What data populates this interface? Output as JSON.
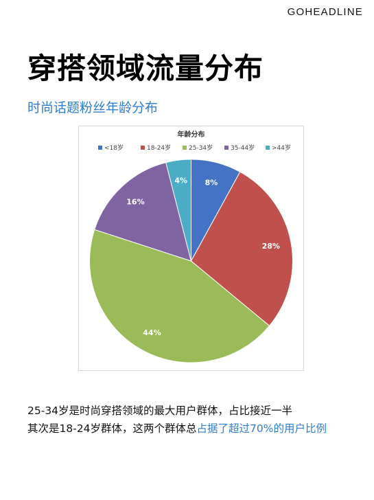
{
  "brand": "GOHEADLINE",
  "title": "穿搭领域流量分布",
  "subtitle": "时尚话题粉丝年龄分布",
  "chart_data": {
    "type": "pie",
    "title": "年龄分布",
    "legend_position": "top",
    "categories": [
      "<18岁",
      "18-24岁",
      "25-34岁",
      "35-44岁",
      ">44岁"
    ],
    "values": [
      8,
      28,
      44,
      16,
      4
    ],
    "labels": [
      "8%",
      "28%",
      "44%",
      "16%",
      "4%"
    ],
    "colors": [
      "#4472c4",
      "#c0504d",
      "#9bbb59",
      "#8064a2",
      "#4bacc6"
    ]
  },
  "paragraph": {
    "line1": "25-34岁是时尚穿搭领域的最大用户群体，占比接近一半",
    "line2_prefix": "其次是18-24岁群体，这两个群体总",
    "line2_highlight": "占据了超过70%的用户比例"
  }
}
